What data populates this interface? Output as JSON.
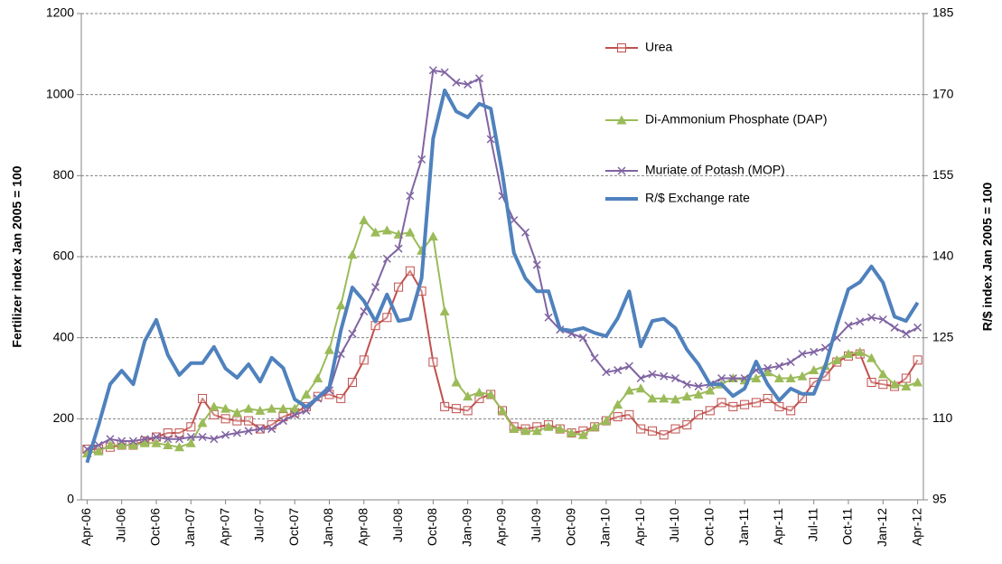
{
  "chart_data": {
    "type": "line",
    "y_label": "Fertilizer index Jan 2005 = 100",
    "y2_label": "R/$ index Jan 2005 = 100",
    "categories": [
      "Apr-06",
      null,
      null,
      "Jul-06",
      null,
      null,
      "Oct-06",
      null,
      null,
      "Jan-07",
      null,
      null,
      "Apr-07",
      null,
      null,
      "Jul-07",
      null,
      null,
      "Oct-07",
      null,
      null,
      "Jan-08",
      null,
      null,
      "Apr-08",
      null,
      null,
      "Jul-08",
      null,
      null,
      "Oct-08",
      null,
      null,
      "Jan-09",
      null,
      null,
      "Apr-09",
      null,
      null,
      "Jul-09",
      null,
      null,
      "Oct-09",
      null,
      null,
      "Jan-10",
      null,
      null,
      "Apr-10",
      null,
      null,
      "Jul-10",
      null,
      null,
      "Oct-10",
      null,
      null,
      "Jan-11",
      null,
      null,
      "Apr-11",
      null,
      null,
      "Jul-11",
      null,
      null,
      "Oct-11",
      null,
      null,
      "Jan-12",
      null,
      null,
      "Apr-12"
    ],
    "ylim": [
      0,
      1200
    ],
    "yticks": [
      0,
      200,
      400,
      600,
      800,
      1000,
      1200
    ],
    "y2lim": [
      95,
      185
    ],
    "y2ticks": [
      95,
      110,
      125,
      140,
      155,
      170,
      185
    ],
    "grid": true,
    "series": [
      {
        "name": "Urea",
        "color": "#c0504d",
        "marker": "square",
        "values": [
          125,
          125,
          130,
          135,
          135,
          145,
          155,
          165,
          165,
          180,
          250,
          210,
          200,
          195,
          195,
          175,
          185,
          205,
          215,
          230,
          255,
          260,
          250,
          290,
          345,
          430,
          450,
          525,
          565,
          515,
          340,
          230,
          225,
          220,
          250,
          260,
          220,
          180,
          175,
          180,
          185,
          175,
          165,
          170,
          180,
          195,
          205,
          210,
          175,
          170,
          160,
          175,
          185,
          210,
          220,
          240,
          230,
          235,
          240,
          250,
          230,
          220,
          250,
          290,
          305,
          340,
          355,
          360,
          290,
          285,
          280,
          300,
          345
        ]
      },
      {
        "name": "Di-Ammonium Phosphate (DAP)",
        "color": "#9bbb59",
        "marker": "triangle",
        "values": [
          115,
          120,
          135,
          135,
          135,
          140,
          140,
          135,
          130,
          140,
          190,
          230,
          225,
          215,
          225,
          220,
          225,
          225,
          225,
          260,
          300,
          370,
          480,
          605,
          690,
          660,
          665,
          655,
          660,
          615,
          650,
          465,
          290,
          255,
          265,
          260,
          220,
          175,
          170,
          170,
          180,
          175,
          165,
          160,
          180,
          195,
          235,
          270,
          275,
          250,
          250,
          248,
          255,
          260,
          270,
          285,
          300,
          295,
          300,
          315,
          300,
          300,
          305,
          320,
          330,
          345,
          360,
          365,
          350,
          310,
          285,
          280,
          290
        ]
      },
      {
        "name": "Muriate of Potash (MOP)",
        "color": "#8064a2",
        "marker": "x",
        "values": [
          125,
          135,
          150,
          145,
          145,
          150,
          155,
          150,
          150,
          155,
          155,
          150,
          160,
          165,
          170,
          175,
          175,
          195,
          210,
          220,
          250,
          270,
          360,
          410,
          465,
          525,
          595,
          620,
          750,
          840,
          1060,
          1055,
          1030,
          1025,
          1040,
          890,
          750,
          690,
          660,
          580,
          450,
          420,
          410,
          400,
          350,
          315,
          320,
          330,
          300,
          310,
          305,
          300,
          285,
          280,
          285,
          300,
          300,
          300,
          320,
          325,
          330,
          340,
          360,
          365,
          375,
          400,
          430,
          440,
          450,
          445,
          425,
          410,
          425
        ]
      },
      {
        "name": "R/$ Exchange rate",
        "color": "#4f81bd",
        "axis": "y2",
        "marker": "none",
        "values": [
          101.9,
          108.9,
          116.4,
          118.9,
          116.4,
          124.4,
          128.3,
          121.8,
          118.1,
          120.3,
          120.3,
          123.3,
          119.3,
          117.6,
          120.1,
          116.9,
          121.3,
          119.4,
          113.6,
          112.2,
          113.9,
          115.9,
          126.4,
          134.3,
          131.8,
          128.0,
          133.0,
          128.1,
          128.5,
          136.0,
          161.9,
          170.8,
          166.9,
          165.8,
          168.3,
          167.4,
          155.4,
          140.7,
          136.0,
          133.6,
          133.6,
          126.6,
          126.3,
          126.8,
          125.9,
          125.3,
          128.6,
          133.6,
          123.4,
          128.1,
          128.5,
          126.8,
          122.8,
          120.1,
          116.4,
          116.4,
          114.2,
          115.6,
          120.6,
          116.4,
          113.4,
          115.6,
          114.6,
          114.6,
          119.8,
          127.3,
          134.0,
          135.3,
          138.2,
          135.2,
          128.9,
          128.1,
          131.5
        ]
      }
    ]
  }
}
